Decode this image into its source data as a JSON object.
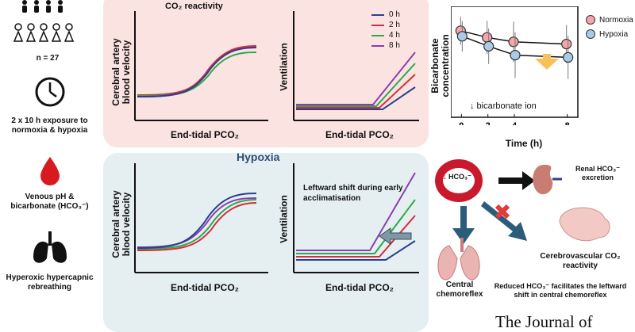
{
  "left_column": {
    "participants": "n = 27",
    "exposure": "2 x 10 h exposure to normoxia & hypoxia",
    "venous": "Venous pH & bicarbonate (HCO₃⁻)",
    "rebreathing": "Hyperoxic hypercapnic rebreathing"
  },
  "normoxia_panel": {
    "title": "CO₂ reactivity",
    "cbv_ylabel": "Cerebral artery blood velocity",
    "vent_ylabel": "Ventilation",
    "xlabel": "End-tidal PCO₂",
    "legend": [
      {
        "label": "0 h",
        "color": "#2b3f8f"
      },
      {
        "label": "2 h",
        "color": "#d62d3a"
      },
      {
        "label": "4 h",
        "color": "#2da84a"
      },
      {
        "label": "8 h",
        "color": "#8a3fb0"
      }
    ]
  },
  "hypoxia_panel": {
    "title": "Hypoxia",
    "cbv_ylabel": "Cerebral artery blood velocity",
    "vent_ylabel": "Ventilation",
    "xlabel": "End-tidal PCO₂",
    "annotation": "Leftward shift during early acclimatisation"
  },
  "bicarbonate_chart": {
    "ylabel": "Bicarbonate concentration",
    "xlabel": "Time (h)",
    "annotation": "↓ bicarbonate ion",
    "legend": [
      {
        "label": "Normoxia",
        "color": "#f4a6ad"
      },
      {
        "label": "Hypoxia",
        "color": "#a9cbe9"
      }
    ]
  },
  "chart_data": {
    "type": "line",
    "title": "",
    "xlabel": "Time (h)",
    "ylabel": "Bicarbonate concentration",
    "x": [
      0,
      2,
      4,
      8
    ],
    "ylim": [
      0,
      10
    ],
    "series": [
      {
        "name": "Normoxia",
        "values": [
          7.8,
          7.2,
          6.8,
          6.6
        ]
      },
      {
        "name": "Hypoxia",
        "values": [
          7.3,
          6.4,
          5.6,
          5.4
        ]
      }
    ]
  },
  "mechanism": {
    "blood_cell_label": "↓ HCO₃⁻",
    "renal": "Renal HCO₃⁻ excretion",
    "cerebrovascular": "Cerebrovascular CO₂ reactivity",
    "central": "Central chemoreflex",
    "caption": "Reduced HCO₃⁻ facilitates the leftward shift in central chemoreflex"
  },
  "journal": "The Journal of"
}
